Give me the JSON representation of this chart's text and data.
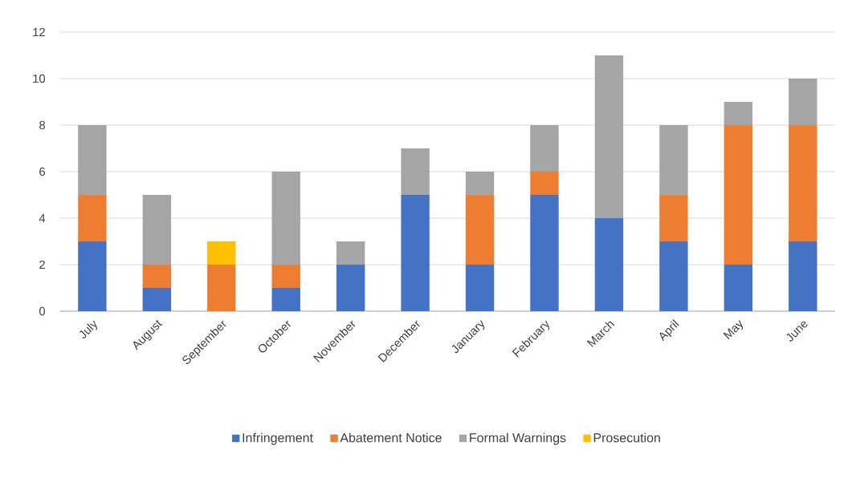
{
  "chart_data": {
    "type": "bar",
    "stacked": true,
    "categories": [
      "July",
      "August",
      "September",
      "October",
      "November",
      "December",
      "January",
      "February",
      "March",
      "April",
      "May",
      "June"
    ],
    "series": [
      {
        "name": "Infringement",
        "color": "#4472c4",
        "values": [
          3,
          1,
          0,
          1,
          2,
          5,
          2,
          5,
          4,
          3,
          2,
          3
        ]
      },
      {
        "name": "Abatement Notice",
        "color": "#ed7d31",
        "values": [
          2,
          1,
          2,
          1,
          0,
          0,
          3,
          1,
          0,
          2,
          6,
          5
        ]
      },
      {
        "name": "Formal Warnings",
        "color": "#a5a5a5",
        "values": [
          3,
          3,
          0,
          4,
          1,
          2,
          1,
          2,
          7,
          3,
          1,
          2
        ]
      },
      {
        "name": "Prosecution",
        "color": "#ffc000",
        "values": [
          0,
          0,
          1,
          0,
          0,
          0,
          0,
          0,
          0,
          0,
          0,
          0
        ]
      }
    ],
    "ylim": [
      0,
      12
    ],
    "yticks": [
      0,
      2,
      4,
      6,
      8,
      10,
      12
    ],
    "grid": "y",
    "legend": "bottom"
  }
}
